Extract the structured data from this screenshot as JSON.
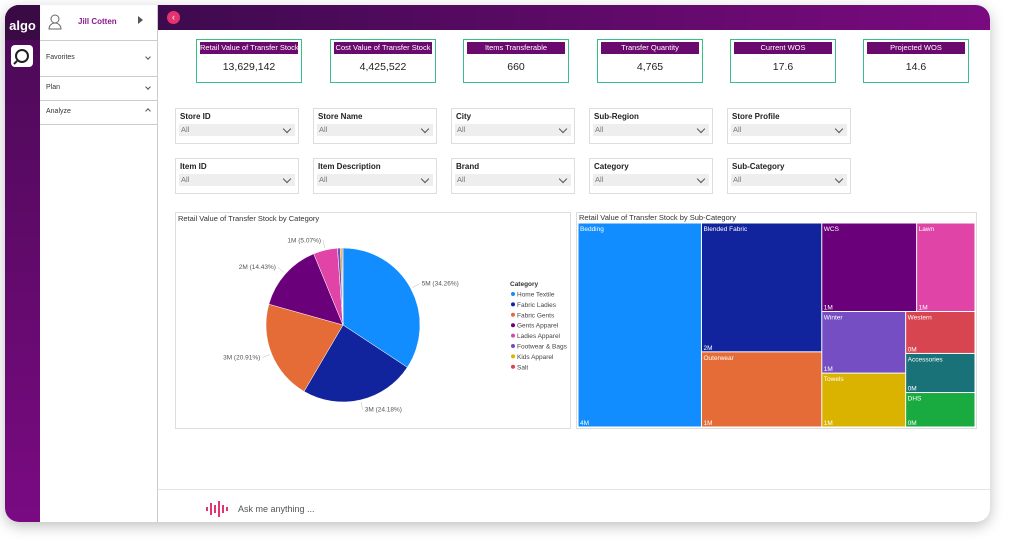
{
  "sidebar": {
    "brand": "algo",
    "user": "Jill Cotten",
    "menu": [
      "Favorites",
      "Plan",
      "Analyze"
    ]
  },
  "kpis": [
    {
      "label": "Retail Value of Transfer Stock",
      "value": "13,629,142"
    },
    {
      "label": "Cost Value of Transfer Stock",
      "value": "4,425,522"
    },
    {
      "label": "Items Transferable",
      "value": "660"
    },
    {
      "label": "Transfer Quantity",
      "value": "4,765"
    },
    {
      "label": "Current WOS",
      "value": "17.6"
    },
    {
      "label": "Projected WOS",
      "value": "14.6"
    }
  ],
  "filters": [
    {
      "label": "Store ID",
      "value": "All"
    },
    {
      "label": "Store Name",
      "value": "All"
    },
    {
      "label": "City",
      "value": "All"
    },
    {
      "label": "Sub-Region",
      "value": "All"
    },
    {
      "label": "Store Profile",
      "value": "All"
    },
    {
      "label": "Item ID",
      "value": "All"
    },
    {
      "label": "Item Description",
      "value": "All"
    },
    {
      "label": "Brand",
      "value": "All"
    },
    {
      "label": "Category",
      "value": "All"
    },
    {
      "label": "Sub-Category",
      "value": "All"
    }
  ],
  "chart_data": [
    {
      "type": "pie",
      "title": "Retail Value of Transfer Stock by Category",
      "legend_title": "Category",
      "categories": [
        "Home Textile",
        "Fabric Ladies",
        "Fabric Gents",
        "Gents Apparel",
        "Ladies Apparel",
        "Footwear & Bags",
        "Kids Apparel",
        "Salt"
      ],
      "values": [
        34.26,
        24.18,
        20.91,
        14.43,
        5.07,
        0.6,
        0.35,
        0.2
      ],
      "value_labels": [
        "5M (34.26%)",
        "3M (24.18%)",
        "3M (20.91%)",
        "2M (14.43%)",
        "1M (5.07%)",
        null,
        null,
        null
      ],
      "colors": [
        "#118dff",
        "#12239e",
        "#e66c37",
        "#6b007b",
        "#e044a7",
        "#744ec2",
        "#d9b300",
        "#d64550"
      ]
    },
    {
      "type": "treemap",
      "title": "Retail Value of Transfer Stock by Sub-Category",
      "categories": [
        "Bedding",
        "Blended Fabric",
        "Outerwear",
        "WCS",
        "Lawn",
        "Winter",
        "Towels",
        "Western",
        "Accessories",
        "DHS"
      ],
      "values": [
        3.9,
        2.4,
        1.4,
        1.3,
        0.8,
        0.8,
        0.7,
        0.45,
        0.42,
        0.37
      ],
      "value_labels": [
        "4M",
        "2M",
        "1M",
        "1M",
        "1M",
        "1M",
        "1M",
        "0M",
        "0M",
        "0M"
      ],
      "colors": [
        "#118dff",
        "#12239e",
        "#e66c37",
        "#6b007b",
        "#e044a7",
        "#744ec2",
        "#d9b300",
        "#d64550",
        "#197278",
        "#1aab40"
      ]
    }
  ],
  "assistant": {
    "placeholder": "Ask me anything ..."
  }
}
